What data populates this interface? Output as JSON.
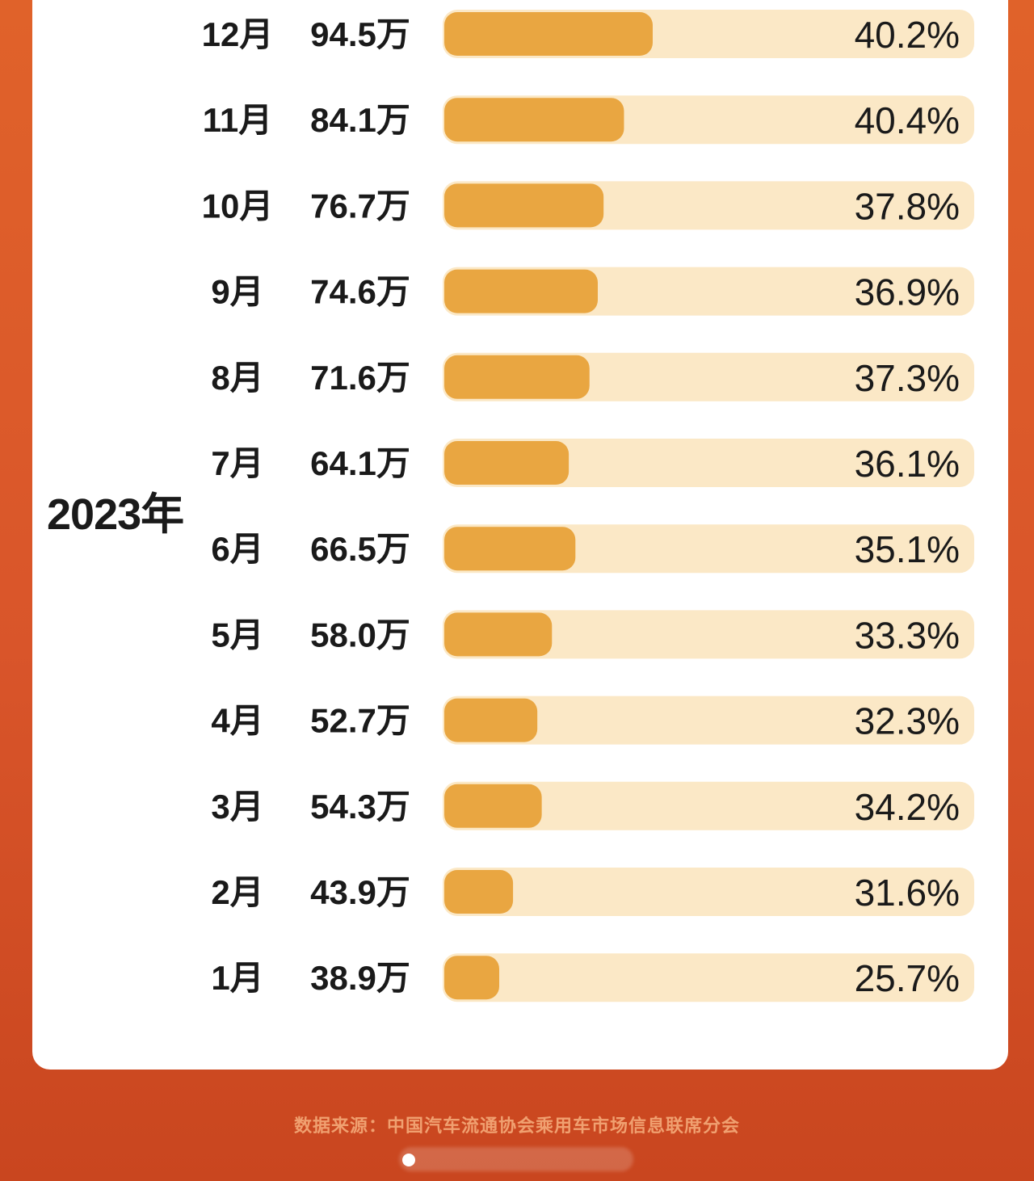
{
  "chart_data": {
    "type": "bar",
    "orientation": "horizontal",
    "year_label": "2023年",
    "categories": [
      "12月",
      "11月",
      "10月",
      "9月",
      "8月",
      "7月",
      "6月",
      "5月",
      "4月",
      "3月",
      "2月",
      "1月"
    ],
    "values": [
      94.5,
      84.1,
      76.7,
      74.6,
      71.6,
      64.1,
      66.5,
      58.0,
      52.7,
      54.3,
      43.9,
      38.9
    ],
    "value_labels": [
      "94.5万",
      "84.1万",
      "76.7万",
      "74.6万",
      "71.6万",
      "64.1万",
      "66.5万",
      "58.0万",
      "52.7万",
      "54.3万",
      "43.9万",
      "38.9万"
    ],
    "percent_values": [
      40.2,
      40.4,
      37.8,
      36.9,
      37.3,
      36.1,
      35.1,
      33.3,
      32.3,
      34.2,
      31.6,
      25.7
    ],
    "percent_labels": [
      "40.2%",
      "40.4%",
      "37.8%",
      "36.9%",
      "37.3%",
      "36.1%",
      "35.1%",
      "33.3%",
      "32.3%",
      "34.2%",
      "31.6%",
      "25.7%"
    ],
    "bar_color": "#e9a641",
    "track_color": "#fbe8c6"
  },
  "footer": {
    "source": "数据来源：中国汽车流通协会乘用车市场信息联席分会"
  }
}
